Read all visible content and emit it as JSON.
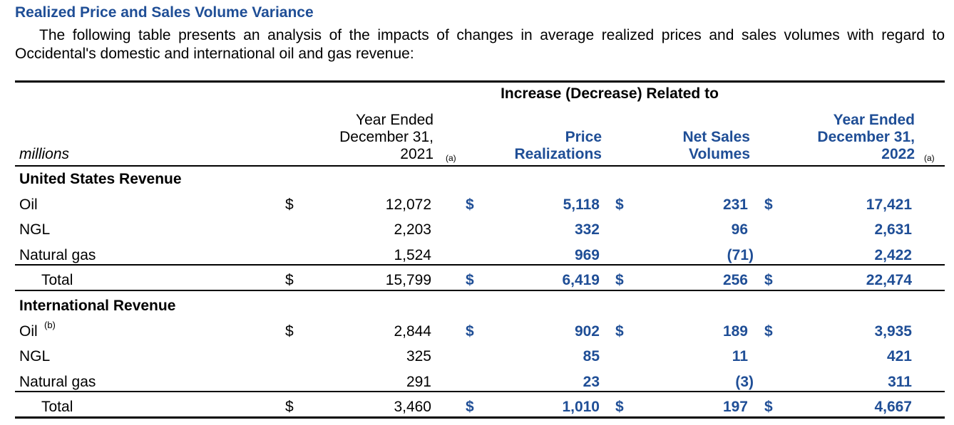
{
  "title": "Realized Price and Sales Volume Variance",
  "intro": "The following table presents an analysis of the impacts of changes in average realized prices and sales volumes with regard to Occidental's domestic and international oil and gas revenue:",
  "header": {
    "group": "Increase (Decrease) Related to",
    "units": "millions",
    "col2021": [
      "Year Ended",
      "December 31,",
      "2021"
    ],
    "col_price": [
      "Price",
      "Realizations"
    ],
    "col_volume": [
      "Net Sales",
      "Volumes"
    ],
    "col2022": [
      "Year Ended",
      "December 31,",
      "2022"
    ],
    "note_a": "(a)"
  },
  "currency": "$",
  "sections": [
    {
      "title": "United States Revenue",
      "rows": [
        {
          "label": "Oil",
          "v2021": "12,072",
          "price": "5,118",
          "volume": "231",
          "v2022": "17,421"
        },
        {
          "label": "NGL",
          "v2021": "2,203",
          "price": "332",
          "volume": "96",
          "v2022": "2,631"
        },
        {
          "label": "Natural gas",
          "v2021": "1,524",
          "price": "969",
          "volume": "(71)",
          "v2022": "2,422"
        }
      ],
      "total": {
        "label": "Total",
        "v2021": "15,799",
        "price": "6,419",
        "volume": "256",
        "v2022": "22,474"
      }
    },
    {
      "title": "International Revenue",
      "rows": [
        {
          "label": "Oil",
          "sup": "(b)",
          "v2021": "2,844",
          "price": "902",
          "volume": "189",
          "v2022": "3,935"
        },
        {
          "label": "NGL",
          "v2021": "325",
          "price": "85",
          "volume": "11",
          "v2022": "421"
        },
        {
          "label": "Natural gas",
          "v2021": "291",
          "price": "23",
          "volume": "(3)",
          "v2022": "311"
        }
      ],
      "total": {
        "label": "Total",
        "v2021": "3,460",
        "price": "1,010",
        "volume": "197",
        "v2022": "4,667"
      }
    }
  ]
}
